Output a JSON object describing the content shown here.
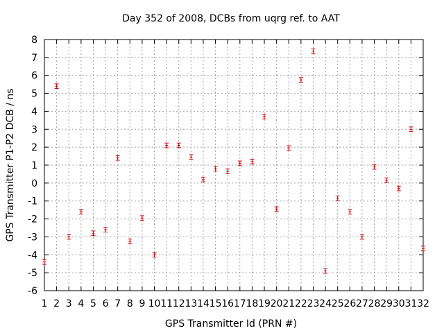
{
  "chart_data": {
    "type": "scatter",
    "title": "Day 352 of 2008, DCBs from uqrg ref. to AAT",
    "xlabel": "GPS Transmitter Id (PRN #)",
    "ylabel": "GPS Transmitter P1-P2 DCB / ns",
    "xlim": [
      1,
      32
    ],
    "ylim": [
      -6,
      8
    ],
    "x_ticks": [
      1,
      2,
      3,
      4,
      5,
      6,
      7,
      8,
      9,
      10,
      11,
      12,
      13,
      14,
      15,
      16,
      17,
      18,
      19,
      20,
      21,
      22,
      23,
      24,
      25,
      26,
      27,
      28,
      29,
      30,
      31,
      32
    ],
    "y_ticks": [
      -6,
      -5,
      -4,
      -3,
      -2,
      -1,
      0,
      1,
      2,
      3,
      4,
      5,
      6,
      7,
      8
    ],
    "grid": true,
    "legend": "none",
    "marker_color": "#cc0000",
    "series": [
      {
        "x": [
          1,
          2,
          3,
          4,
          5,
          6,
          7,
          8,
          9,
          10,
          11,
          12,
          13,
          14,
          15,
          16,
          17,
          18,
          19,
          20,
          21,
          22,
          23,
          24,
          25,
          26,
          27,
          28,
          29,
          30,
          31,
          32
        ],
        "y": [
          -4.4,
          5.4,
          -3.0,
          -1.6,
          -2.8,
          -2.6,
          1.4,
          -3.25,
          -1.95,
          -4.0,
          2.1,
          2.1,
          1.45,
          0.2,
          0.8,
          0.65,
          1.1,
          1.2,
          3.7,
          -1.45,
          1.95,
          5.75,
          7.35,
          -4.9,
          -0.85,
          -1.6,
          -3.0,
          0.9,
          0.15,
          -0.3,
          3.0,
          -3.65
        ],
        "err": [
          0.13,
          0.13,
          0.13,
          0.13,
          0.13,
          0.13,
          0.13,
          0.13,
          0.13,
          0.13,
          0.13,
          0.13,
          0.13,
          0.13,
          0.13,
          0.13,
          0.13,
          0.13,
          0.13,
          0.13,
          0.13,
          0.13,
          0.13,
          0.13,
          0.13,
          0.13,
          0.13,
          0.13,
          0.13,
          0.13,
          0.13,
          0.13
        ]
      }
    ]
  }
}
